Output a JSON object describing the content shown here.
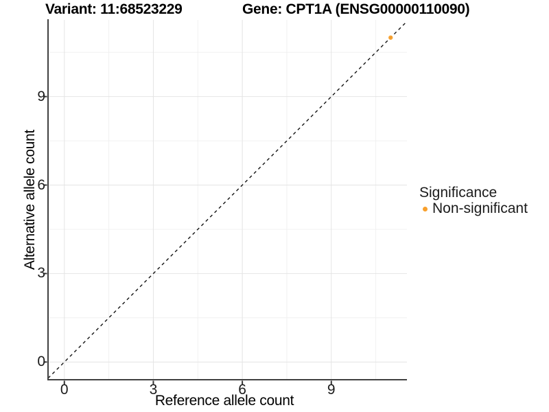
{
  "chart_data": {
    "type": "scatter",
    "titles": {
      "left": "Variant: 11:68523229",
      "right": "Gene: CPT1A (ENSG00000110090)"
    },
    "xlabel": "Reference allele count",
    "ylabel": "Alternative allele count",
    "xlim": [
      -0.55,
      11.55
    ],
    "ylim": [
      -0.6,
      11.6
    ],
    "x_ticks": [
      0,
      3,
      6,
      9
    ],
    "y_ticks": [
      0,
      3,
      6,
      9
    ],
    "x_minor_gridlines": [
      1.5,
      4.5,
      7.5,
      10.5
    ],
    "y_minor_gridlines": [
      1.5,
      4.5,
      7.5,
      10.5
    ],
    "grid": true,
    "points": [
      {
        "x": 11,
        "y": 11,
        "series": "Non-significant"
      }
    ],
    "identity_line": {
      "style": "dashed",
      "slope": 1,
      "intercept": 0
    },
    "legend": {
      "position": "right",
      "title": "Significance",
      "items": [
        {
          "label": "Non-significant",
          "color": "#F8A02C"
        }
      ]
    },
    "colors": {
      "point": "#F8A02C",
      "grid_major": "#E4E4E4",
      "grid_minor": "#F0F0F0",
      "axis_line": "#404040",
      "tick_mark": "#333333",
      "dashed_line": "#141414",
      "text": "#1A1A1A"
    }
  }
}
